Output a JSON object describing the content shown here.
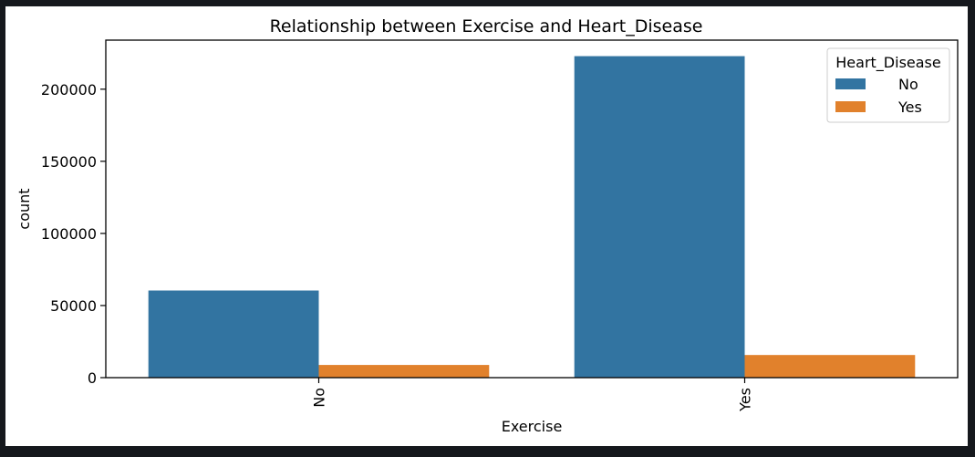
{
  "chart_data": {
    "type": "bar",
    "title": "Relationship between Exercise and Heart_Disease",
    "xlabel": "Exercise",
    "ylabel": "count",
    "categories": [
      "No",
      "Yes"
    ],
    "series": [
      {
        "name": "No",
        "values": [
          60400,
          222900
        ],
        "color": "#3274a1"
      },
      {
        "name": "Yes",
        "values": [
          8800,
          15700
        ],
        "color": "#e1812c"
      }
    ],
    "ylim": [
      0,
      234000
    ],
    "yticks": [
      0,
      50000,
      100000,
      150000,
      200000
    ],
    "legend": {
      "title": "Heart_Disease",
      "placement": "top-right"
    },
    "grid": false
  }
}
